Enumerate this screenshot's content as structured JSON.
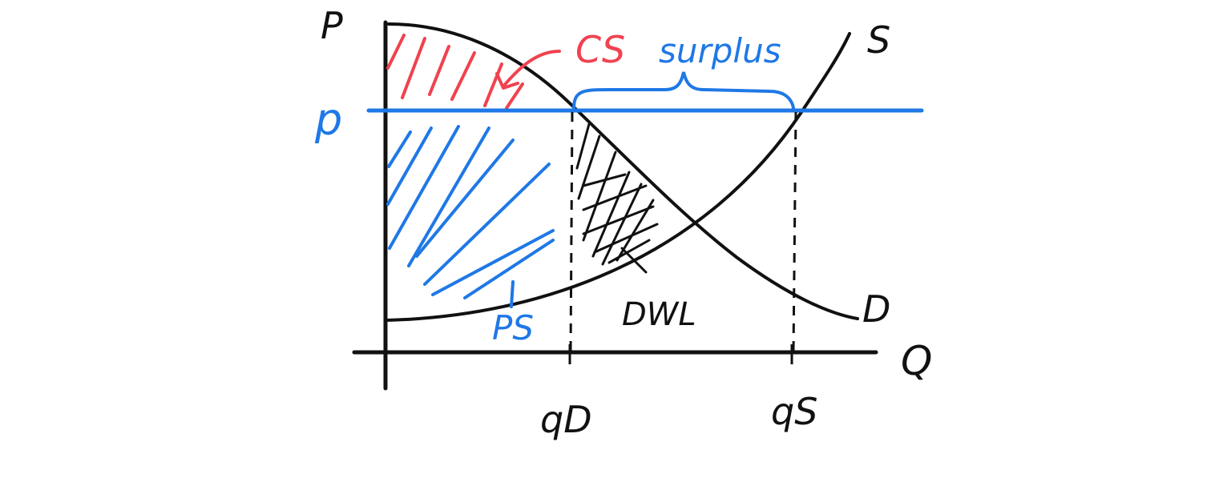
{
  "labels": {
    "price_axis": "P",
    "quantity_axis": "Q",
    "supply_curve": "S",
    "demand_curve": "D",
    "price_floor": "p",
    "consumer_surplus": "CS",
    "producer_surplus": "PS",
    "surplus": "surplus",
    "deadweight_loss": "DWL",
    "quantity_demanded": "qD",
    "quantity_supplied": "qS"
  },
  "colors": {
    "ink": "#111111",
    "blue": "#1f78e6",
    "red": "#f0424f"
  }
}
